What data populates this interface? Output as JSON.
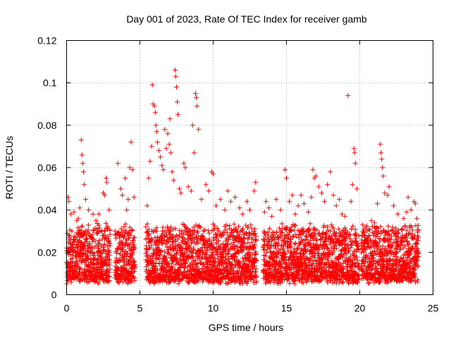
{
  "chart_data": {
    "type": "scatter",
    "title": "Day 001 of 2023, Rate Of TEC Index for receiver gamb",
    "xlabel": "GPS time / hours",
    "ylabel": "ROTI / TECUs",
    "xlim": [
      0,
      25
    ],
    "ylim": [
      0,
      0.12
    ],
    "xticks": [
      0,
      5,
      10,
      15,
      20,
      25
    ],
    "xtick_labels": [
      "0",
      "5",
      "10",
      "15",
      "20",
      "25"
    ],
    "yticks": [
      0,
      0.02,
      0.04,
      0.06,
      0.08,
      0.1,
      0.12
    ],
    "ytick_labels": [
      "0",
      "0.02",
      "0.04",
      "0.06",
      "0.08",
      "0.1",
      "0.12"
    ],
    "grid": true,
    "marker": "+",
    "color": "#ff0000",
    "series": [
      {
        "name": "ROTI",
        "points": [
          [
            0.1,
            0.046
          ],
          [
            0.15,
            0.044
          ],
          [
            0.3,
            0.038
          ],
          [
            0.5,
            0.039
          ],
          [
            0.7,
            0.035
          ],
          [
            0.8,
            0.036
          ],
          [
            0.9,
            0.041
          ],
          [
            1.0,
            0.073
          ],
          [
            1.05,
            0.066
          ],
          [
            1.1,
            0.062
          ],
          [
            1.15,
            0.058
          ],
          [
            1.2,
            0.052
          ],
          [
            1.3,
            0.045
          ],
          [
            1.5,
            0.04
          ],
          [
            1.8,
            0.038
          ],
          [
            2.0,
            0.035
          ],
          [
            2.2,
            0.038
          ],
          [
            2.5,
            0.048
          ],
          [
            2.6,
            0.047
          ],
          [
            2.7,
            0.055
          ],
          [
            2.75,
            0.053
          ],
          [
            2.9,
            0.04
          ],
          [
            3.5,
            0.062
          ],
          [
            3.7,
            0.05
          ],
          [
            3.8,
            0.047
          ],
          [
            4.0,
            0.055
          ],
          [
            4.1,
            0.04
          ],
          [
            4.2,
            0.045
          ],
          [
            4.3,
            0.06
          ],
          [
            4.4,
            0.072
          ],
          [
            4.5,
            0.059
          ],
          [
            4.6,
            0.046
          ],
          [
            5.5,
            0.042
          ],
          [
            5.6,
            0.055
          ],
          [
            5.7,
            0.063
          ],
          [
            5.8,
            0.07
          ],
          [
            5.85,
            0.099
          ],
          [
            5.9,
            0.09
          ],
          [
            6.0,
            0.089
          ],
          [
            6.05,
            0.086
          ],
          [
            6.1,
            0.08
          ],
          [
            6.15,
            0.077
          ],
          [
            6.2,
            0.072
          ],
          [
            6.3,
            0.068
          ],
          [
            6.4,
            0.065
          ],
          [
            6.5,
            0.061
          ],
          [
            6.6,
            0.059
          ],
          [
            6.7,
            0.078
          ],
          [
            6.8,
            0.069
          ],
          [
            6.9,
            0.076
          ],
          [
            7.0,
            0.071
          ],
          [
            7.05,
            0.083
          ],
          [
            7.1,
            0.067
          ],
          [
            7.2,
            0.058
          ],
          [
            7.3,
            0.054
          ],
          [
            7.4,
            0.106
          ],
          [
            7.45,
            0.103
          ],
          [
            7.5,
            0.098
          ],
          [
            7.55,
            0.091
          ],
          [
            7.6,
            0.085
          ],
          [
            7.7,
            0.05
          ],
          [
            7.8,
            0.048
          ],
          [
            8.0,
            0.062
          ],
          [
            8.1,
            0.06
          ],
          [
            8.3,
            0.051
          ],
          [
            8.5,
            0.049
          ],
          [
            8.6,
            0.08
          ],
          [
            8.7,
            0.067
          ],
          [
            8.8,
            0.095
          ],
          [
            8.85,
            0.093
          ],
          [
            8.9,
            0.089
          ],
          [
            9.0,
            0.078
          ],
          [
            9.2,
            0.045
          ],
          [
            9.5,
            0.052
          ],
          [
            9.7,
            0.049
          ],
          [
            9.9,
            0.058
          ],
          [
            10.0,
            0.057
          ],
          [
            10.2,
            0.042
          ],
          [
            10.5,
            0.045
          ],
          [
            10.8,
            0.04
          ],
          [
            11.0,
            0.049
          ],
          [
            11.2,
            0.044
          ],
          [
            11.5,
            0.046
          ],
          [
            11.8,
            0.041
          ],
          [
            12.0,
            0.038
          ],
          [
            12.3,
            0.044
          ],
          [
            12.5,
            0.04
          ],
          [
            12.8,
            0.049
          ],
          [
            12.9,
            0.053
          ],
          [
            13.5,
            0.039
          ],
          [
            13.6,
            0.044
          ],
          [
            13.8,
            0.041
          ],
          [
            14.0,
            0.037
          ],
          [
            14.3,
            0.045
          ],
          [
            14.6,
            0.04
          ],
          [
            14.9,
            0.059
          ],
          [
            15.0,
            0.055
          ],
          [
            15.2,
            0.044
          ],
          [
            15.4,
            0.047
          ],
          [
            15.6,
            0.038
          ],
          [
            15.8,
            0.042
          ],
          [
            16.0,
            0.047
          ],
          [
            16.2,
            0.043
          ],
          [
            16.5,
            0.039
          ],
          [
            16.7,
            0.046
          ],
          [
            16.8,
            0.059
          ],
          [
            16.9,
            0.055
          ],
          [
            17.0,
            0.056
          ],
          [
            17.2,
            0.051
          ],
          [
            17.4,
            0.048
          ],
          [
            17.6,
            0.044
          ],
          [
            17.8,
            0.052
          ],
          [
            18.0,
            0.058
          ],
          [
            18.2,
            0.047
          ],
          [
            18.4,
            0.042
          ],
          [
            18.6,
            0.045
          ],
          [
            18.8,
            0.038
          ],
          [
            19.0,
            0.037
          ],
          [
            19.2,
            0.094
          ],
          [
            19.4,
            0.044
          ],
          [
            19.5,
            0.052
          ],
          [
            19.6,
            0.069
          ],
          [
            19.65,
            0.067
          ],
          [
            19.7,
            0.062
          ],
          [
            19.8,
            0.05
          ],
          [
            20.2,
            0.033
          ],
          [
            20.5,
            0.03
          ],
          [
            20.8,
            0.035
          ],
          [
            21.0,
            0.034
          ],
          [
            21.2,
            0.043
          ],
          [
            21.4,
            0.071
          ],
          [
            21.45,
            0.067
          ],
          [
            21.5,
            0.064
          ],
          [
            21.55,
            0.06
          ],
          [
            21.6,
            0.056
          ],
          [
            21.7,
            0.048
          ],
          [
            21.9,
            0.047
          ],
          [
            22.0,
            0.051
          ],
          [
            22.3,
            0.042
          ],
          [
            22.6,
            0.038
          ],
          [
            23.0,
            0.036
          ],
          [
            23.2,
            0.039
          ],
          [
            23.3,
            0.046
          ],
          [
            23.5,
            0.04
          ],
          [
            23.7,
            0.044
          ],
          [
            23.8,
            0.043
          ],
          [
            23.9,
            0.036
          ]
        ]
      }
    ],
    "observation_windows_hours": [
      [
        0.0,
        2.95
      ],
      [
        3.3,
        4.65
      ],
      [
        5.4,
        12.95
      ],
      [
        13.4,
        19.95
      ],
      [
        20.1,
        24.0
      ]
    ],
    "noise_floor_range": [
      0.005,
      0.03
    ]
  }
}
